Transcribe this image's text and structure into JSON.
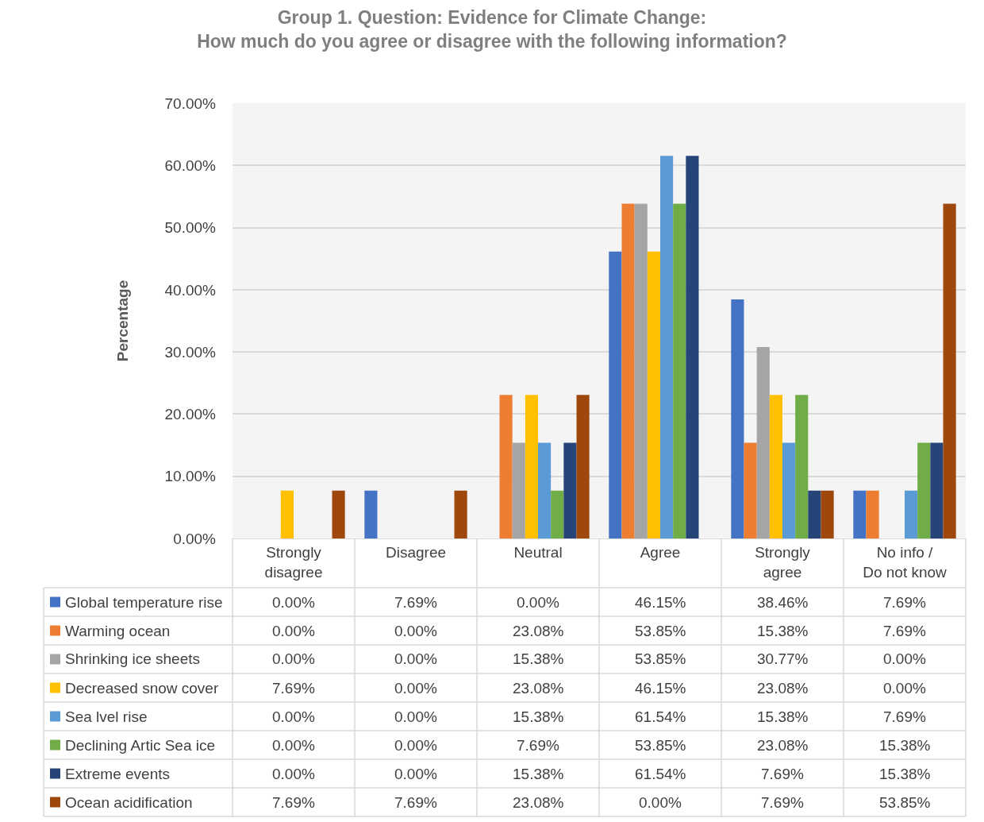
{
  "chart_data": {
    "type": "bar",
    "title": "Group 1. Question: Evidence for Climate Change:\nHow much do you agree or disagree with the following information?",
    "ylabel": "Percentage",
    "categories": [
      "Strongly disagree",
      "Disagree",
      "Neutral",
      "Agree",
      "Strongly agree",
      "No info / Do not know"
    ],
    "series": [
      {
        "name": "Global temperature rise",
        "color": "#4472c4",
        "values": [
          0,
          7.69,
          0,
          46.15,
          38.46,
          7.69
        ],
        "value_labels": [
          "0.00%",
          "7.69%",
          "0.00%",
          "46.15%",
          "38.46%",
          "7.69%"
        ]
      },
      {
        "name": "Warming ocean",
        "color": "#ed7d31",
        "values": [
          0,
          0,
          23.08,
          53.85,
          15.38,
          7.69
        ],
        "value_labels": [
          "0.00%",
          "0.00%",
          "23.08%",
          "53.85%",
          "15.38%",
          "7.69%"
        ]
      },
      {
        "name": "Shrinking ice sheets",
        "color": "#a5a5a5",
        "values": [
          0,
          0,
          15.38,
          53.85,
          30.77,
          0
        ],
        "value_labels": [
          "0.00%",
          "0.00%",
          "15.38%",
          "53.85%",
          "30.77%",
          "0.00%"
        ]
      },
      {
        "name": "Decreased snow cover",
        "color": "#ffc000",
        "values": [
          7.69,
          0,
          23.08,
          46.15,
          23.08,
          0
        ],
        "value_labels": [
          "7.69%",
          "0.00%",
          "23.08%",
          "46.15%",
          "23.08%",
          "0.00%"
        ]
      },
      {
        "name": "Sea lvel rise",
        "color": "#5b9bd5",
        "values": [
          0,
          0,
          15.38,
          61.54,
          15.38,
          7.69
        ],
        "value_labels": [
          "0.00%",
          "0.00%",
          "15.38%",
          "61.54%",
          "15.38%",
          "7.69%"
        ]
      },
      {
        "name": "Declining Artic Sea ice",
        "color": "#70ad47",
        "values": [
          0,
          0,
          7.69,
          53.85,
          23.08,
          15.38
        ],
        "value_labels": [
          "0.00%",
          "0.00%",
          "7.69%",
          "53.85%",
          "23.08%",
          "15.38%"
        ]
      },
      {
        "name": "Extreme events",
        "color": "#264478",
        "values": [
          0,
          0,
          15.38,
          61.54,
          7.69,
          15.38
        ],
        "value_labels": [
          "0.00%",
          "0.00%",
          "15.38%",
          "61.54%",
          "7.69%",
          "15.38%"
        ]
      },
      {
        "name": "Ocean acidification",
        "color": "#9e480e",
        "values": [
          7.69,
          7.69,
          23.08,
          0,
          7.69,
          53.85
        ],
        "value_labels": [
          "7.69%",
          "7.69%",
          "23.08%",
          "0.00%",
          "7.69%",
          "53.85%"
        ]
      }
    ],
    "ylim": [
      0,
      70
    ],
    "yticks": [
      {
        "value": 0,
        "label": "0.00%"
      },
      {
        "value": 10,
        "label": "10.00%"
      },
      {
        "value": 20,
        "label": "20.00%"
      },
      {
        "value": 30,
        "label": "30.00%"
      },
      {
        "value": 40,
        "label": "40.00%"
      },
      {
        "value": 50,
        "label": "50.00%"
      },
      {
        "value": 60,
        "label": "60.00%"
      },
      {
        "value": 70,
        "label": "70.00%"
      }
    ],
    "grid": "y",
    "legend": "bottom left"
  }
}
